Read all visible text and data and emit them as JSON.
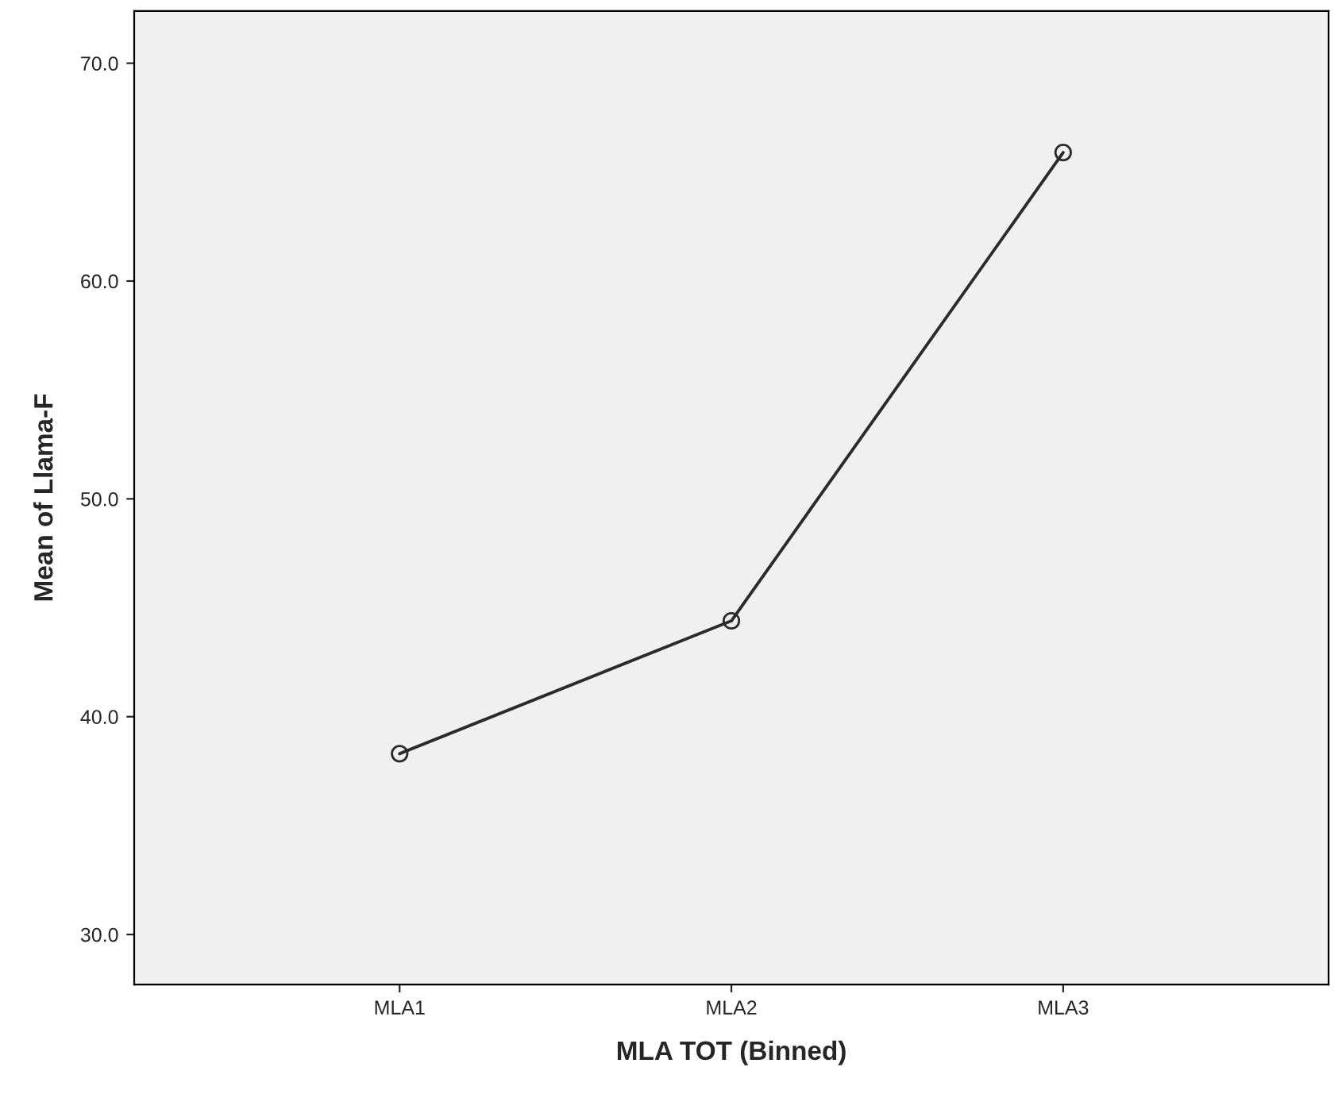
{
  "chart_data": {
    "type": "line",
    "xlabel": "MLA TOT (Binned)",
    "ylabel": "Mean of Llama-F",
    "categories": [
      "MLA1",
      "MLA2",
      "MLA3"
    ],
    "values": [
      38.3,
      44.4,
      65.9
    ],
    "color": "#2b2b2b",
    "marker": "circle",
    "line_style": "solid",
    "ylim": [
      27.7,
      72.4
    ],
    "yticks": [
      {
        "value": 30,
        "label": "30.0"
      },
      {
        "value": 40,
        "label": "40.0"
      },
      {
        "value": 50,
        "label": "50.0"
      },
      {
        "value": 60,
        "label": "60.0"
      },
      {
        "value": 70,
        "label": "70.0"
      }
    ],
    "grid": false
  }
}
